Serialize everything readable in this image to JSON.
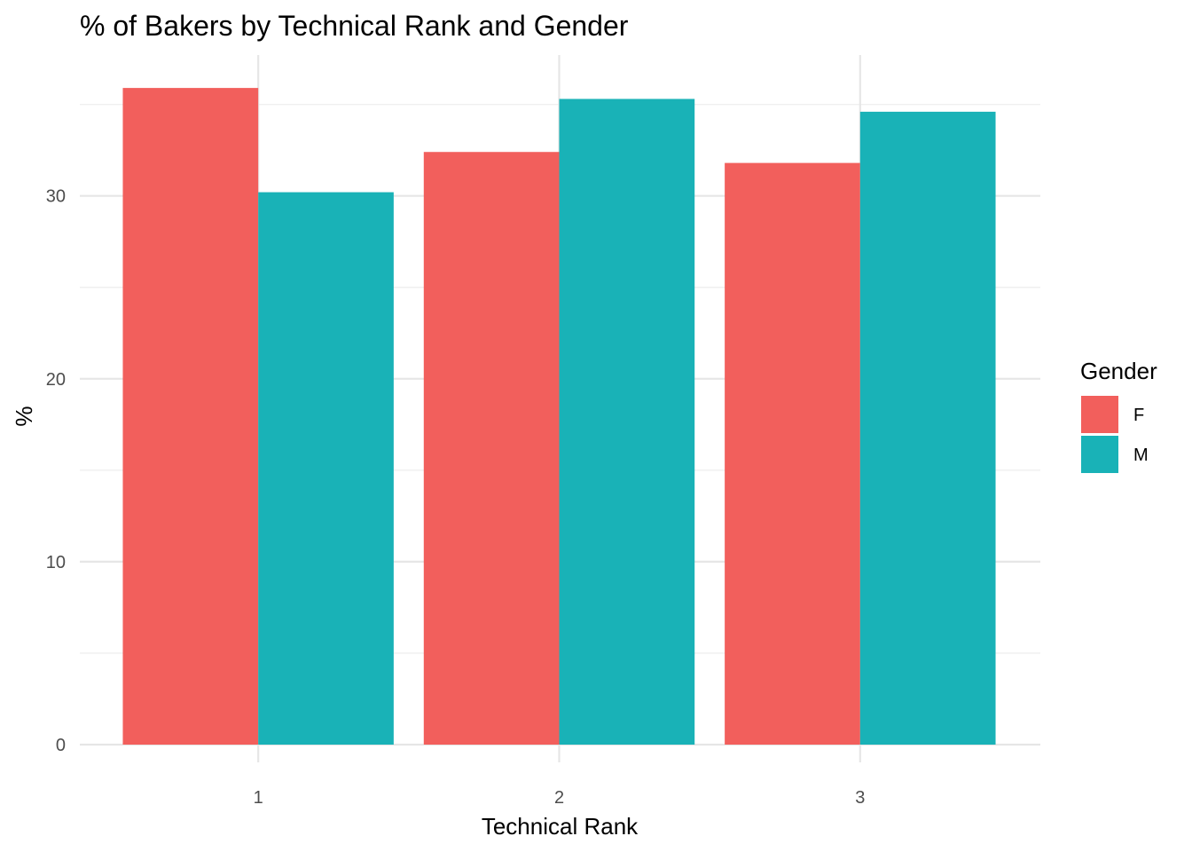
{
  "chart_data": {
    "type": "bar",
    "title": "% of Bakers by Technical Rank and Gender",
    "xlabel": "Technical Rank",
    "ylabel": "%",
    "categories": [
      "1",
      "2",
      "3"
    ],
    "series": [
      {
        "name": "F",
        "color": "#F25F5C",
        "values": [
          35.9,
          32.4,
          31.8
        ]
      },
      {
        "name": "M",
        "color": "#19B2B7",
        "values": [
          30.2,
          35.3,
          34.6
        ]
      }
    ],
    "ylim": [
      0,
      37.6
    ],
    "yticks": [
      0,
      10,
      20,
      30
    ],
    "yticks_minor": [
      5,
      15,
      25,
      35
    ],
    "grid": true,
    "legend": {
      "title": "Gender",
      "position": "right"
    }
  }
}
